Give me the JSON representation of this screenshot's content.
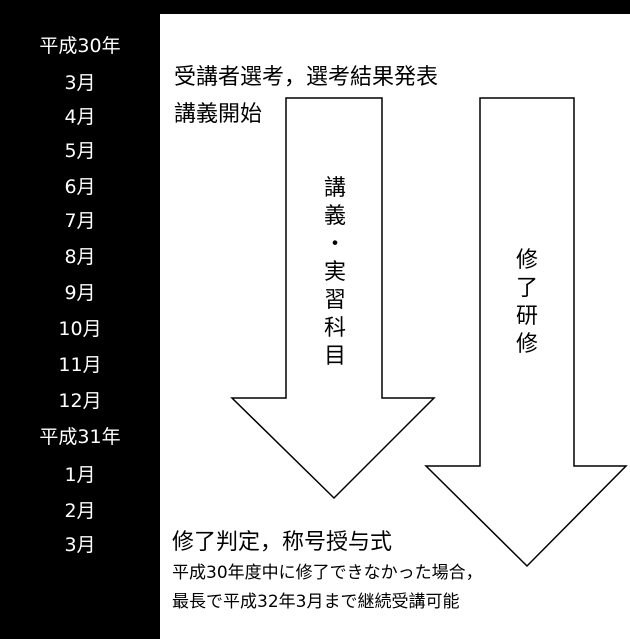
{
  "timeline": {
    "months": [
      "平成30年",
      "3月",
      "4月",
      "5月",
      "6月",
      "7月",
      "8月",
      "9月",
      "10月",
      "11月",
      "12月",
      "平成31年",
      "1月",
      "2月",
      "3月"
    ]
  },
  "events": {
    "selection": "受講者選考，選考結果発表",
    "lecture_start": "講義開始",
    "completion": "修了判定，称号授与式",
    "note_line1": "平成30年度中に修了できなかった場合，",
    "note_line2": "最長で平成32年3月まで継続受講可能"
  },
  "arrows": {
    "lecture_label": [
      "講",
      "義",
      "・",
      "実",
      "習",
      "科",
      "目"
    ],
    "training_label": [
      "修",
      "了",
      "研",
      "修"
    ]
  },
  "colors": {
    "sidebar_bg": "#000000",
    "sidebar_text": "#ffffff",
    "arrow_stroke": "#000000",
    "arrow_fill": "#ffffff"
  }
}
